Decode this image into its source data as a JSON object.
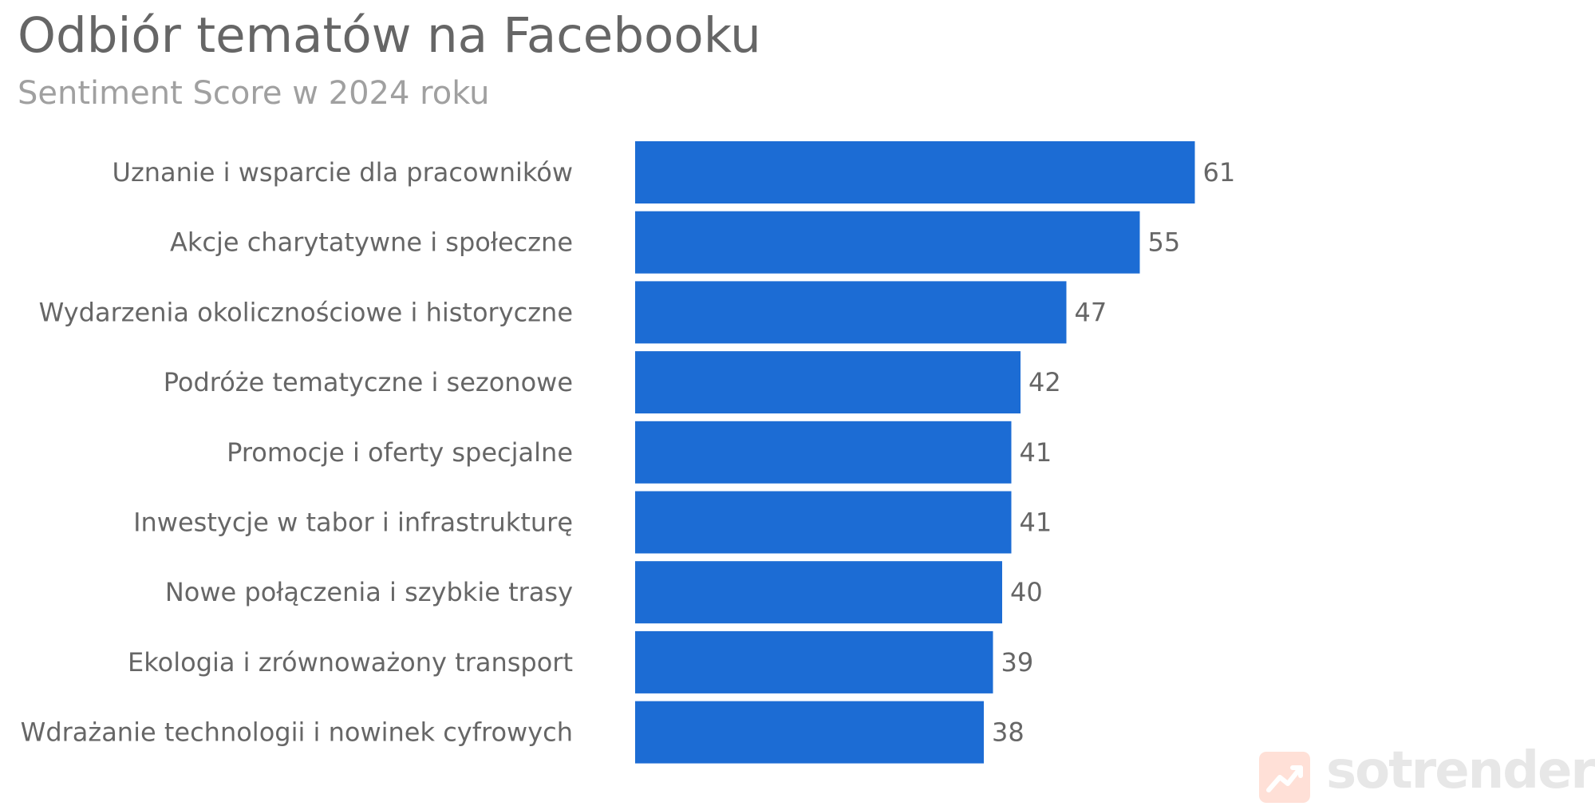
{
  "title": "Odbiór tematów na Facebooku",
  "subtitle": "Sentiment Score w 2024 roku",
  "watermark": {
    "text": "sotrender",
    "icon": "trend-chart-icon",
    "icon_color": "#ff6a3d",
    "text_color": "#8a8a8a"
  },
  "colors": {
    "bar": "#1c6cd4",
    "text": "#666666",
    "subtitle": "#a0a0a0"
  },
  "chart_data": {
    "type": "bar",
    "orientation": "horizontal",
    "title": "Odbiór tematów na Facebooku",
    "subtitle": "Sentiment Score w 2024 roku",
    "xlabel": "",
    "ylabel": "",
    "grid": false,
    "xlim": [
      0,
      70
    ],
    "categories": [
      "Uznanie i wsparcie dla pracowników",
      "Akcje charytatywne i społeczne",
      "Wydarzenia okolicznościowe i historyczne",
      "Podróże tematyczne i sezonowe",
      "Promocje i oferty specjalne",
      "Inwestycje w tabor i infrastrukturę",
      "Nowe połączenia i szybkie trasy",
      "Ekologia i zrównoważony transport",
      "Wdrażanie technologii i nowinek cyfrowych"
    ],
    "values": [
      61,
      55,
      47,
      42,
      41,
      41,
      40,
      39,
      38
    ],
    "value_labels": [
      "61",
      "55",
      "47",
      "42",
      "41",
      "41",
      "40",
      "39",
      "38"
    ]
  }
}
